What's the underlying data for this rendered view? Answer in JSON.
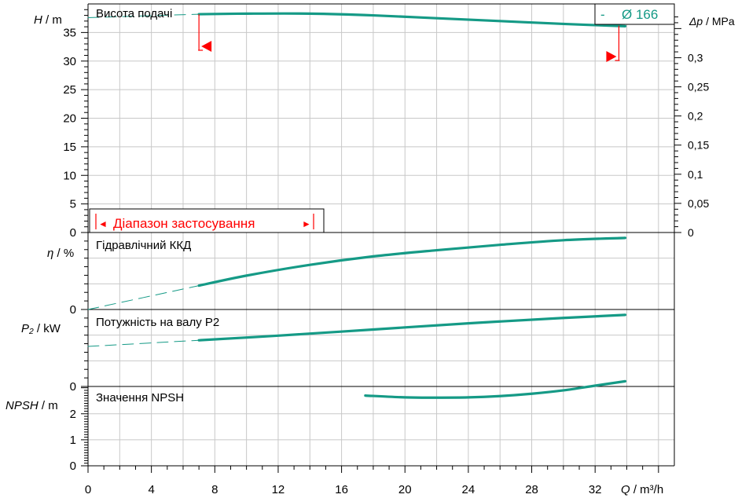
{
  "chart_data": {
    "type": "line",
    "colors": {
      "curve": "#159a86",
      "range": "#ff0000",
      "grid": "#c8c8c8",
      "axis": "#000000"
    },
    "x_axis": {
      "label_italic": "Q",
      "label_unit": " / m³/h",
      "ticks": [
        "0",
        "4",
        "8",
        "12",
        "16",
        "20",
        "24",
        "28",
        "32"
      ],
      "xlim": [
        0,
        37
      ]
    },
    "head_panel": {
      "title": "Висота подачі",
      "ylabel_italic": "H",
      "ylabel_unit": " / m",
      "yticks": [
        "0",
        "5",
        "10",
        "15",
        "20",
        "25",
        "30",
        "35"
      ],
      "ylim": [
        0,
        40
      ],
      "right_label_italic": "Δp",
      "right_label_unit": " / MPa",
      "right_ticks": [
        "0",
        "0,05",
        "0,1",
        "0,15",
        "0,2",
        "0,25",
        "0,3"
      ],
      "legend": {
        "dash": "-",
        "text": "Ø 166"
      },
      "range_label": "Діапазон застосування",
      "range_label_left_arrow": "◄",
      "range_label_right_arrow": "►",
      "operating_range": [
        7,
        33.5
      ],
      "series": [
        {
          "x": [
            7,
            10,
            14,
            18,
            22,
            26,
            30,
            33.9
          ],
          "y": [
            38.2,
            38.3,
            38.3,
            38.0,
            37.5,
            37.0,
            36.5,
            36.1
          ]
        }
      ],
      "extrapolation": {
        "x": [
          0,
          7
        ],
        "y": [
          37.6,
          38.2
        ]
      }
    },
    "efficiency_panel": {
      "title": "Гідравлічний ККД",
      "ylabel_italic": "η",
      "ylabel_unit": " / %",
      "yticks": [
        "0"
      ],
      "series": [
        {
          "x": [
            7,
            10,
            14,
            18,
            22,
            26,
            30,
            33.9
          ],
          "y": [
            0.31,
            0.44,
            0.58,
            0.69,
            0.77,
            0.84,
            0.9,
            0.93
          ]
        }
      ],
      "extrapolation": {
        "x": [
          0,
          7
        ],
        "y": [
          0,
          0.31
        ]
      }
    },
    "power_panel": {
      "title": "Потужність на валу P2",
      "ylabel_italic": "P₂",
      "ylabel_unit": " / kW",
      "yticks": [
        "0"
      ],
      "series": [
        {
          "x": [
            7,
            12,
            18,
            24,
            30,
            33.9
          ],
          "y": [
            0.6,
            0.66,
            0.74,
            0.82,
            0.89,
            0.93
          ]
        }
      ],
      "extrapolation": {
        "x": [
          0,
          7
        ],
        "y": [
          0.52,
          0.6
        ]
      }
    },
    "npsh_panel": {
      "title": "Значення NPSH",
      "ylabel_italic": "NPSH",
      "ylabel_unit": "  / m",
      "yticks": [
        "0",
        "1",
        "2"
      ],
      "ylim": [
        0,
        3.05
      ],
      "series": [
        {
          "x": [
            17.5,
            20,
            22,
            24,
            26,
            28,
            30,
            32,
            33.9
          ],
          "y": [
            2.7,
            2.63,
            2.62,
            2.63,
            2.68,
            2.77,
            2.9,
            3.08,
            3.25
          ]
        }
      ]
    }
  }
}
